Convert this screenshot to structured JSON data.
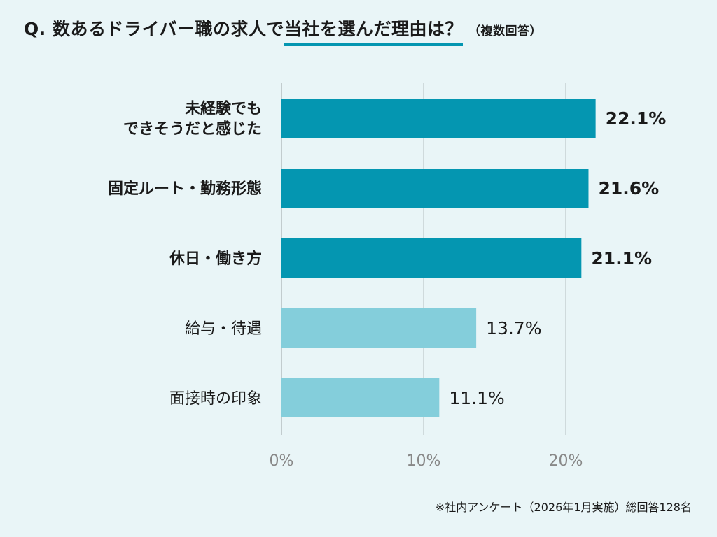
{
  "title": {
    "prefix": "Q. 数あるドライバー職の求人で",
    "highlight": "当社を選んだ理由は？",
    "note": "（複数回答）"
  },
  "chart_data": {
    "type": "bar",
    "orientation": "horizontal",
    "categories": [
      [
        "未経験でも",
        "できそうだと感じた"
      ],
      [
        "固定ルート・勤務形態"
      ],
      [
        "休日・働き方"
      ],
      [
        "給与・待遇"
      ],
      [
        "面接時の印象"
      ]
    ],
    "values": [
      22.1,
      21.6,
      21.1,
      13.7,
      11.1
    ],
    "value_labels": [
      "22.1%",
      "21.6%",
      "21.1%",
      "13.7%",
      "11.1%"
    ],
    "highlighted": [
      true,
      true,
      true,
      false,
      false
    ],
    "xlim": [
      0,
      25
    ],
    "x_ticks": [
      0,
      10,
      20
    ],
    "x_tick_labels": [
      "0%",
      "10%",
      "20%"
    ],
    "grid": true,
    "colors": {
      "highlight": "#0496b1",
      "normal": "#84cedb",
      "grid": "#b5bfc2",
      "tick_text": "#888888"
    }
  },
  "footnote": "※社内アンケート（2026年1月実施）総回答128名"
}
